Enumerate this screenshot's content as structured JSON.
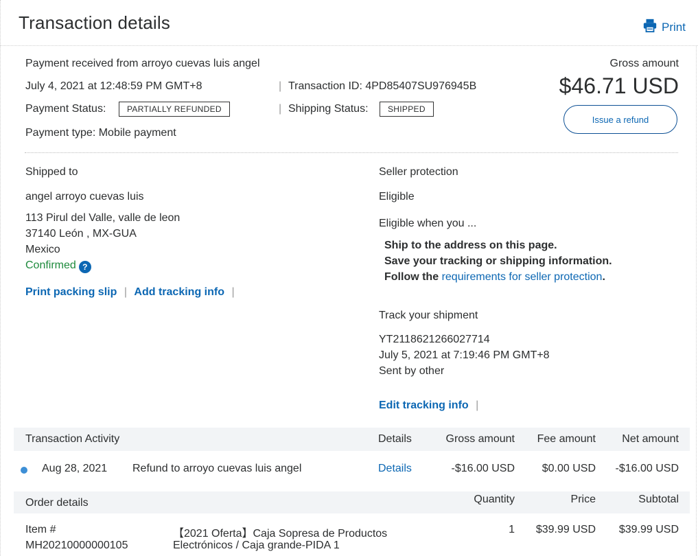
{
  "header": {
    "title": "Transaction details",
    "print_label": "Print"
  },
  "summary": {
    "payment_received": "Payment received from arroyo cuevas luis angel",
    "date": "July 4, 2021 at 12:48:59 PM GMT+8",
    "transaction_id": "Transaction ID: 4PD85407SU976945B",
    "payment_status_label": "Payment Status:",
    "payment_status_value": "PARTIALLY REFUNDED",
    "shipping_status_label": "Shipping Status:",
    "shipping_status_value": "SHIPPED",
    "payment_type": "Payment type: Mobile payment",
    "gross_label": "Gross amount",
    "gross_amount": "$46.71 USD",
    "refund_button": "Issue a refund"
  },
  "shipped_to": {
    "heading": "Shipped to",
    "name": "angel arroyo cuevas luis",
    "address_line1": "113 Pirul del Valle, valle de leon",
    "address_line2": "37140 León , MX-GUA",
    "country": "Mexico",
    "status": "Confirmed",
    "help_icon": "?",
    "print_packing_slip": "Print packing slip",
    "add_tracking_info": "Add tracking info",
    "separator": "|"
  },
  "seller_protection": {
    "heading": "Seller protection",
    "status": "Eligible",
    "eligible_when": "Eligible when you ...",
    "req1": "Ship to the address on this page.",
    "req2": "Save your tracking or shipping information.",
    "req3_prefix": "Follow the",
    "req3_link": "requirements for seller protection",
    "req3_suffix": "."
  },
  "tracking": {
    "heading": "Track your shipment",
    "number": "YT2118621266027714",
    "date": "July 5, 2021 at 7:19:46 PM GMT+8",
    "sent_by": "Sent by other",
    "edit_link": "Edit tracking info"
  },
  "activity": {
    "heading": "Transaction Activity",
    "columns": {
      "details": "Details",
      "gross": "Gross amount",
      "fee": "Fee amount",
      "net": "Net amount"
    },
    "row": {
      "date": "Aug 28, 2021",
      "description": "Refund to arroyo cuevas luis angel",
      "details_link": "Details",
      "gross": "-$16.00 USD",
      "fee": "$0.00 USD",
      "net": "-$16.00 USD"
    }
  },
  "order": {
    "heading": "Order details",
    "columns": {
      "quantity": "Quantity",
      "price": "Price",
      "subtotal": "Subtotal"
    },
    "item": {
      "item_label": "Item #",
      "item_number": "MH20210000000105",
      "name_line1": "【2021 Oferta】Caja Sopresa de Productos",
      "name_line2": "Electrónicos / Caja grande-PIDA 1",
      "quantity": "1",
      "price": "$39.99 USD",
      "subtotal": "$39.99 USD"
    }
  },
  "colors": {
    "link": "#0c67b3",
    "confirmed": "#1d8a3c",
    "band": "#f2f4f6",
    "dot": "#3d8fd6"
  }
}
